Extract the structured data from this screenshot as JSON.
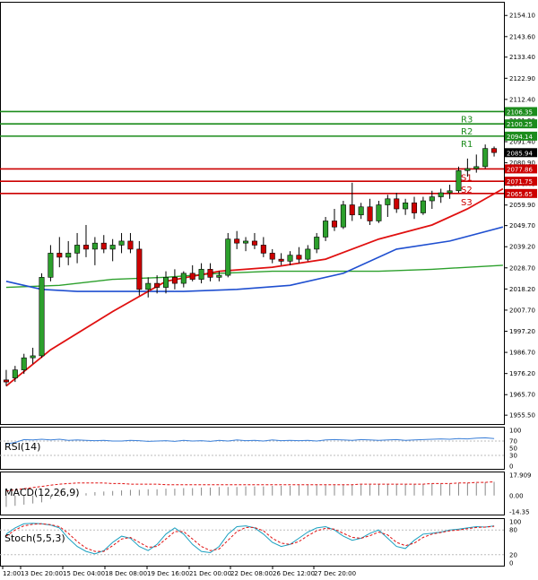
{
  "chart_data": {
    "type": "candlestick",
    "price_axis": {
      "range": [
        1952.0,
        2160.0
      ],
      "ticks": [
        "2154.10",
        "2143.60",
        "2133.40",
        "2122.90",
        "2112.40",
        "2101.90",
        "2091.40",
        "2080.90",
        "2070.40",
        "2059.90",
        "2049.70",
        "2039.20",
        "2028.70",
        "2018.20",
        "2007.70",
        "1997.20",
        "1986.70",
        "1976.20",
        "1965.70",
        "1955.50"
      ]
    },
    "x_labels": [
      "12:00",
      "13 Dec 20:00",
      "15 Dec 04:00",
      "18 Dec 08:00",
      "19 Dec 16:00",
      "21 Dec 00:00",
      "22 Dec 08:00",
      "26 Dec 12:00",
      "27 Dec 20:00"
    ],
    "current_price": "2085.94",
    "levels": [
      {
        "name": "R3",
        "value": 2106.35,
        "label": "2106.35",
        "color": "#1c8c1c",
        "box": "#1c8c1c"
      },
      {
        "name": "R2",
        "value": 2100.25,
        "label": "2100.25",
        "color": "#1c8c1c",
        "box": "#1c8c1c"
      },
      {
        "name": "R1",
        "value": 2094.14,
        "label": "2094.14",
        "color": "#1c8c1c",
        "box": "#1c8c1c"
      },
      {
        "name": "S1",
        "value": 2077.86,
        "label": "2077.86",
        "color": "#cc0000",
        "box": "#cc0000"
      },
      {
        "name": "S2",
        "value": 2071.75,
        "label": "2071.75",
        "color": "#cc0000",
        "box": "#cc0000"
      },
      {
        "name": "S3",
        "value": 2065.65,
        "label": "2065.65",
        "color": "#cc0000",
        "box": "#cc0000"
      }
    ],
    "level_text": {
      "R3": "R3",
      "R2": "R2",
      "R1": "R1",
      "S1": "S1",
      "S2": "S2",
      "S3": "S3"
    },
    "candles": [
      [
        1973,
        1978,
        1970,
        1972
      ],
      [
        1974,
        1980,
        1972,
        1978
      ],
      [
        1978,
        1986,
        1976,
        1984
      ],
      [
        1984,
        1989,
        1981,
        1985
      ],
      [
        1985,
        2026,
        1984,
        2024
      ],
      [
        2024,
        2040,
        2022,
        2036
      ],
      [
        2036,
        2044,
        2029,
        2034
      ],
      [
        2034,
        2042,
        2030,
        2036
      ],
      [
        2036,
        2046,
        2031,
        2040
      ],
      [
        2040,
        2050,
        2034,
        2038
      ],
      [
        2038,
        2044,
        2030,
        2041
      ],
      [
        2041,
        2045,
        2036,
        2038
      ],
      [
        2038,
        2043,
        2032,
        2040
      ],
      [
        2040,
        2046,
        2036,
        2042
      ],
      [
        2042,
        2046,
        2036,
        2038
      ],
      [
        2038,
        2042,
        2015,
        2018
      ],
      [
        2018,
        2024,
        2014,
        2021
      ],
      [
        2021,
        2025,
        2016,
        2019
      ],
      [
        2019,
        2027,
        2016,
        2024
      ],
      [
        2024,
        2028,
        2018,
        2021
      ],
      [
        2021,
        2027,
        2019,
        2026
      ],
      [
        2026,
        2030,
        2022,
        2023
      ],
      [
        2023,
        2031,
        2021,
        2028
      ],
      [
        2028,
        2031,
        2022,
        2024
      ],
      [
        2024,
        2027,
        2022,
        2025
      ],
      [
        2025,
        2046,
        2024,
        2043
      ],
      [
        2043,
        2047,
        2038,
        2041
      ],
      [
        2041,
        2044,
        2037,
        2042
      ],
      [
        2042,
        2046,
        2038,
        2040
      ],
      [
        2040,
        2044,
        2034,
        2036
      ],
      [
        2036,
        2038,
        2031,
        2033
      ],
      [
        2033,
        2036,
        2030,
        2032
      ],
      [
        2032,
        2037,
        2030,
        2035
      ],
      [
        2035,
        2039,
        2031,
        2033
      ],
      [
        2033,
        2040,
        2032,
        2038
      ],
      [
        2038,
        2046,
        2036,
        2044
      ],
      [
        2044,
        2054,
        2042,
        2052
      ],
      [
        2052,
        2058,
        2047,
        2049
      ],
      [
        2049,
        2062,
        2048,
        2060
      ],
      [
        2060,
        2071,
        2052,
        2055
      ],
      [
        2055,
        2061,
        2053,
        2059
      ],
      [
        2059,
        2063,
        2050,
        2052
      ],
      [
        2052,
        2062,
        2051,
        2060
      ],
      [
        2060,
        2065,
        2054,
        2063
      ],
      [
        2063,
        2066,
        2056,
        2058
      ],
      [
        2058,
        2063,
        2055,
        2061
      ],
      [
        2061,
        2064,
        2053,
        2056
      ],
      [
        2056,
        2064,
        2055,
        2062
      ],
      [
        2062,
        2067,
        2058,
        2064
      ],
      [
        2064,
        2068,
        2061,
        2066
      ],
      [
        2066,
        2070,
        2063,
        2067
      ],
      [
        2067,
        2079,
        2066,
        2077
      ],
      [
        2077,
        2083,
        2074,
        2078
      ],
      [
        2078,
        2085,
        2076,
        2079
      ],
      [
        2079,
        2090,
        2078,
        2088
      ],
      [
        2088,
        2089,
        2084,
        2086
      ]
    ],
    "ma_red": [
      [
        0,
        1970
      ],
      [
        5,
        1988
      ],
      [
        12,
        2007
      ],
      [
        18,
        2022
      ],
      [
        24,
        2027
      ],
      [
        30,
        2029
      ],
      [
        36,
        2033
      ],
      [
        42,
        2043
      ],
      [
        48,
        2050
      ],
      [
        52,
        2058
      ],
      [
        56,
        2068
      ]
    ],
    "ma_blue": [
      [
        0,
        2022
      ],
      [
        4,
        2018
      ],
      [
        8,
        2017
      ],
      [
        14,
        2017
      ],
      [
        20,
        2017
      ],
      [
        26,
        2018
      ],
      [
        32,
        2020
      ],
      [
        38,
        2026
      ],
      [
        44,
        2038
      ],
      [
        50,
        2042
      ],
      [
        56,
        2049
      ]
    ],
    "ma_green": [
      [
        0,
        2019
      ],
      [
        6,
        2020
      ],
      [
        12,
        2023
      ],
      [
        18,
        2024
      ],
      [
        24,
        2026
      ],
      [
        30,
        2027
      ],
      [
        36,
        2027
      ],
      [
        42,
        2027
      ],
      [
        48,
        2028
      ],
      [
        56,
        2030
      ]
    ],
    "rsi": {
      "label": "RSI(14)",
      "ticks": [
        "100",
        "70",
        "50",
        "30",
        "0"
      ],
      "range": [
        0,
        100
      ],
      "values": [
        62,
        66,
        74,
        73,
        75,
        73,
        75,
        72,
        73,
        72,
        71,
        72,
        70,
        70,
        72,
        71,
        69,
        70,
        71,
        69,
        72,
        70,
        71,
        69,
        72,
        70,
        73,
        71,
        72,
        70,
        73,
        71,
        72,
        71,
        72,
        70,
        73,
        74,
        73,
        72,
        74,
        73,
        72,
        73,
        74,
        72,
        73,
        74,
        75,
        76,
        75,
        77,
        76,
        78,
        79,
        77
      ]
    },
    "macd": {
      "label": "MACD(12,26,9)",
      "ticks": [
        "17.909",
        "0.00",
        "-14.35"
      ],
      "range": [
        -14.35,
        17.909
      ],
      "hist": [
        -10,
        -9,
        -8,
        -7,
        -6,
        -3,
        -1,
        0,
        1,
        2,
        3,
        3.5,
        4,
        4.5,
        5,
        5,
        5.5,
        5.5,
        6,
        6,
        6.5,
        6.5,
        7,
        7,
        7.5,
        7.5,
        7.5,
        8,
        8,
        8,
        8.5,
        8.5,
        8.5,
        9,
        9,
        9,
        9,
        9,
        9.5,
        9.5,
        9.5,
        9.5,
        10,
        10,
        10,
        10,
        10,
        10,
        10.5,
        10.5,
        10.5,
        11,
        11,
        11,
        11.5,
        12
      ],
      "signal": [
        4,
        5,
        6,
        7,
        8,
        9,
        10,
        10.5,
        11,
        11,
        11,
        11,
        10.5,
        10.5,
        10,
        10,
        10,
        10,
        9.5,
        9.5,
        9.5,
        9.5,
        9.5,
        9.5,
        9.5,
        9.5,
        9.5,
        9.5,
        9.5,
        9.5,
        9.5,
        9.5,
        9.5,
        9.5,
        9.5,
        9.5,
        9.5,
        9.5,
        9.5,
        9.5,
        10,
        10,
        10,
        10,
        10,
        10,
        10,
        10,
        10.5,
        10.5,
        10.5,
        11,
        11,
        11.5,
        11.5,
        12
      ]
    },
    "stoch": {
      "label": "Stoch(5,5,3)",
      "ticks": [
        "100",
        "80",
        "20",
        "0"
      ],
      "range": [
        0,
        100
      ],
      "k": [
        70,
        85,
        95,
        96,
        95,
        92,
        85,
        60,
        40,
        28,
        22,
        30,
        50,
        65,
        60,
        40,
        30,
        45,
        70,
        85,
        70,
        45,
        28,
        25,
        40,
        70,
        88,
        90,
        85,
        70,
        50,
        40,
        45,
        60,
        75,
        85,
        88,
        80,
        65,
        55,
        60,
        72,
        80,
        60,
        40,
        35,
        55,
        70,
        72,
        75,
        80,
        82,
        85,
        88,
        87,
        90
      ],
      "d": [
        65,
        80,
        90,
        94,
        95,
        93,
        88,
        72,
        52,
        36,
        28,
        28,
        42,
        58,
        62,
        50,
        38,
        40,
        58,
        76,
        76,
        58,
        40,
        30,
        34,
        55,
        76,
        86,
        86,
        78,
        60,
        48,
        45,
        52,
        66,
        78,
        84,
        82,
        72,
        62,
        60,
        66,
        75,
        68,
        50,
        42,
        48,
        62,
        70,
        74,
        78,
        80,
        83,
        86,
        87,
        89
      ]
    }
  }
}
